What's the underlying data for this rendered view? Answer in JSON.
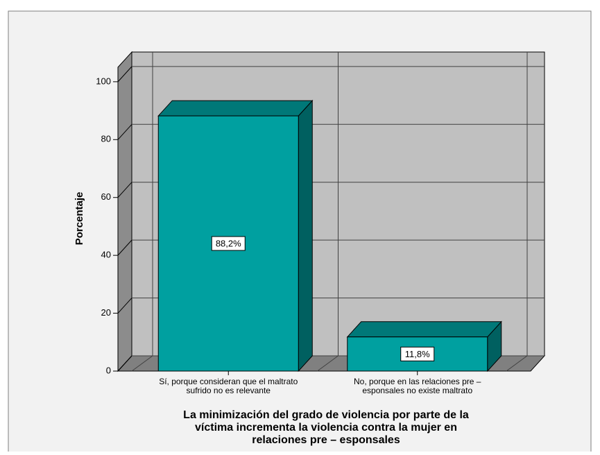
{
  "chart_data": {
    "type": "bar3d",
    "categories": [
      [
        "Sí, porque consideran que el maltrato",
        "sufrido no es relevante"
      ],
      [
        "No, porque en las relaciones pre –",
        "esponsales no existe maltrato"
      ]
    ],
    "values": [
      88.2,
      11.8
    ],
    "value_labels": [
      "88,2%",
      "11,8%"
    ],
    "color": "#00a0a0",
    "y_label": "Porcentaje",
    "x_label": [
      "La minimización del grado de violencia por parte de la",
      "víctima incrementa la violencia contra la mujer en",
      "relaciones pre – esponsales"
    ],
    "ylim": [
      0,
      105
    ],
    "yticks": [
      0,
      20,
      40,
      60,
      80,
      100
    ],
    "grid": true
  }
}
